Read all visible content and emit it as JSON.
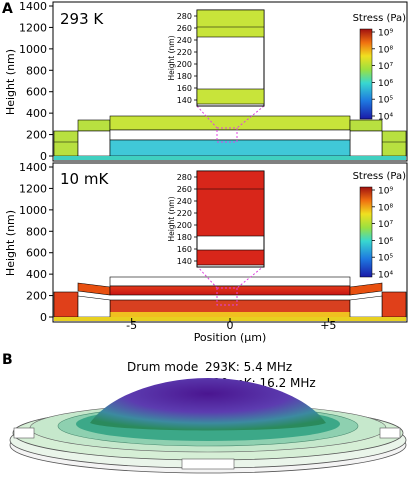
{
  "panel_a_letter": "A",
  "panel_b_letter": "B",
  "chart_data": [
    {
      "type": "heatmap",
      "panel": "A-top",
      "temperature_label": "293 K",
      "ylabel": "Height (nm)",
      "yticks": [
        "0",
        "200",
        "400",
        "600",
        "800",
        "1000",
        "1200",
        "1400"
      ],
      "ylim": [
        0,
        1400
      ],
      "xlim": [
        -9,
        9
      ],
      "colorbar_title": "Stress (Pa)",
      "colorbar_ticks": [
        "10⁹",
        "10⁸",
        "10⁷",
        "10⁶",
        "10⁵",
        "10⁴"
      ],
      "inset_ylabel": "Height (nm)",
      "inset_yticks": [
        "140",
        "160",
        "180",
        "200",
        "220",
        "240",
        "260",
        "280"
      ],
      "inset_ylim": [
        130,
        290
      ],
      "inset_layers": [
        {
          "from": 140,
          "to": 160,
          "level": "medium"
        },
        {
          "from": 245,
          "to": 260,
          "level": "medium"
        }
      ],
      "stress_scale": "log",
      "stress_range_pa": [
        10000,
        1000000000
      ],
      "dominant_stress": "~10^7 Pa (green-yellow)"
    },
    {
      "type": "heatmap",
      "panel": "A-bottom",
      "temperature_label": "10 mK",
      "ylabel": "Height (nm)",
      "yticks": [
        "0",
        "200",
        "400",
        "600",
        "800",
        "1000",
        "1200",
        "1400"
      ],
      "ylim": [
        0,
        1400
      ],
      "xlabel": "Position (μm)",
      "xticks": [
        "-5",
        "0",
        "+5"
      ],
      "xtick_values": [
        -5,
        0,
        5
      ],
      "xlim": [
        -9,
        9
      ],
      "colorbar_title": "Stress (Pa)",
      "colorbar_ticks": [
        "10⁹",
        "10⁸",
        "10⁷",
        "10⁶",
        "10⁵",
        "10⁴"
      ],
      "inset_ylabel": "Height (nm)",
      "inset_yticks": [
        "140",
        "160",
        "180",
        "200",
        "220",
        "240",
        "260",
        "280"
      ],
      "inset_ylim": [
        130,
        290
      ],
      "inset_layers": [
        {
          "from": 140,
          "to": 165,
          "level": "high"
        },
        {
          "from": 175,
          "to": 270,
          "level": "high"
        }
      ],
      "stress_scale": "log",
      "stress_range_pa": [
        10000,
        1000000000
      ],
      "dominant_stress": "~10^8.5 Pa (red)"
    }
  ],
  "drum": {
    "mode_label": "Drum mode",
    "freq_293": "293K: 5.4 MHz",
    "freq_10mk": "10 mK: 16.2 MHz"
  },
  "colors": {
    "stress_low": "#2020b0",
    "stress_mid": "#a8dc30",
    "stress_high": "#d01818",
    "zoom_box": "#e040e0",
    "drum_top": "#5a1fa0"
  }
}
